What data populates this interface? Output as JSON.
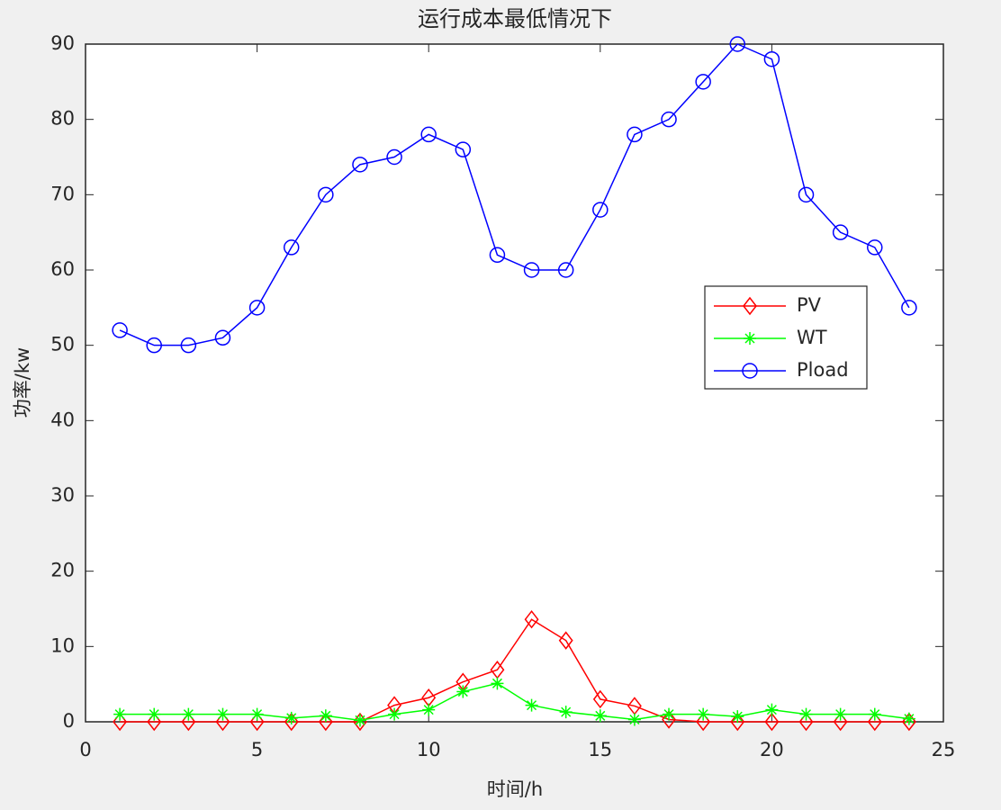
{
  "chart_data": {
    "type": "line",
    "title": "运行成本最低情况下",
    "xlabel": "时间/h",
    "ylabel": "功率/kw",
    "x": [
      1,
      2,
      3,
      4,
      5,
      6,
      7,
      8,
      9,
      10,
      11,
      12,
      13,
      14,
      15,
      16,
      17,
      18,
      19,
      20,
      21,
      22,
      23,
      24
    ],
    "series": [
      {
        "name": "PV",
        "color": "#ff0000",
        "marker": "diamond",
        "values": [
          0,
          0,
          0,
          0,
          0,
          0,
          0,
          0,
          2.2,
          3.2,
          5.3,
          6.9,
          13.6,
          10.8,
          3.0,
          2.1,
          0.3,
          0,
          0,
          0,
          0,
          0,
          0,
          0
        ]
      },
      {
        "name": "WT",
        "color": "#00ff00",
        "marker": "asterisk",
        "values": [
          1,
          1,
          1,
          1,
          1,
          0.5,
          0.8,
          0.2,
          1,
          1.6,
          4,
          5.1,
          2.2,
          1.3,
          0.8,
          0.3,
          1,
          1,
          0.7,
          1.6,
          1,
          1,
          1,
          0.4
        ]
      },
      {
        "name": "Pload",
        "color": "#0000ff",
        "marker": "circle",
        "values": [
          52,
          50,
          50,
          51,
          55,
          63,
          70,
          74,
          75,
          78,
          76,
          62,
          60,
          60,
          68,
          78,
          80,
          85,
          90,
          88,
          70,
          65,
          63,
          55
        ]
      }
    ],
    "xlim": [
      0,
      25
    ],
    "xticks": [
      0,
      5,
      10,
      15,
      20,
      25
    ],
    "ylim": [
      0,
      90
    ],
    "yticks": [
      0,
      10,
      20,
      30,
      40,
      50,
      60,
      70,
      80,
      90
    ],
    "legend": "east"
  }
}
